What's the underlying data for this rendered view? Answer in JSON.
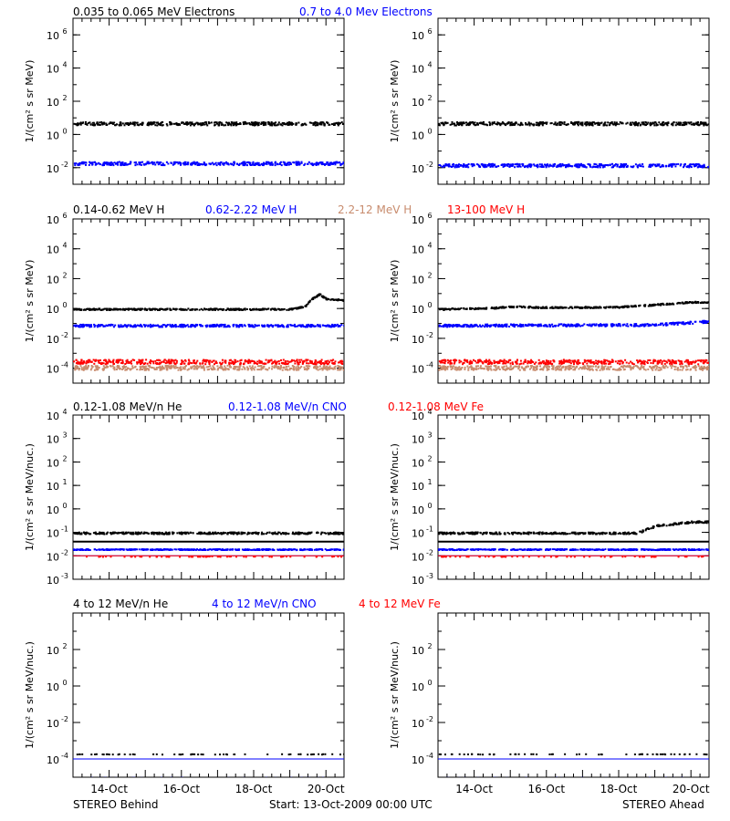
{
  "footer": {
    "left": "STEREO Behind",
    "center": "Start: 13-Oct-2009 00:00 UTC",
    "right": "STEREO Ahead"
  },
  "x_ticks": [
    "14-Oct",
    "16-Oct",
    "18-Oct",
    "20-Oct"
  ],
  "colors": {
    "black": "#000000",
    "blue": "#0000ff",
    "red": "#ff0000",
    "tan": "#c88c6e"
  },
  "chart_data": [
    {
      "type": "scatter",
      "row": 1,
      "titles": [
        {
          "text": "0.035 to 0.065 MeV Electrons",
          "color": "#000000"
        },
        {
          "text": "0.7 to 4.0 Mev Electrons",
          "color": "#0000ff"
        }
      ],
      "ylabel": "1/(cm² s sr MeV)",
      "yscale": "log",
      "ylim_exp": [
        -3,
        7
      ],
      "yticks": [
        {
          "text": "10",
          "exp": "-2"
        },
        {
          "text": "10",
          "exp": "0"
        },
        {
          "text": "10",
          "exp": "2"
        },
        {
          "text": "10",
          "exp": "4"
        },
        {
          "text": "10",
          "exp": "6"
        }
      ],
      "xlim_days": [
        0,
        7.5
      ],
      "panels": [
        {
          "spacecraft": "STEREO Behind",
          "series": [
            {
              "name": "0.035 to 0.065 MeV Electrons",
              "color": "#000000",
              "level": 5,
              "spread": 0.1
            },
            {
              "name": "0.7 to 4.0 Mev Electrons",
              "color": "#0000ff",
              "level": 0.02,
              "spread": 0.1
            }
          ]
        },
        {
          "spacecraft": "STEREO Ahead",
          "series": [
            {
              "name": "0.035 to 0.065 MeV Electrons",
              "color": "#000000",
              "level": 5,
              "spread": 0.1
            },
            {
              "name": "0.7 to 4.0 Mev Electrons",
              "color": "#0000ff",
              "level": 0.015,
              "spread": 0.1
            }
          ]
        }
      ]
    },
    {
      "type": "scatter",
      "row": 2,
      "titles": [
        {
          "text": "0.14-0.62 MeV H",
          "color": "#000000"
        },
        {
          "text": "0.62-2.22 MeV H",
          "color": "#0000ff"
        },
        {
          "text": "2.2-12 MeV H",
          "color": "#c88c6e"
        },
        {
          "text": "13-100 MeV H",
          "color": "#ff0000"
        }
      ],
      "ylabel": "1/(cm² s sr MeV)",
      "yscale": "log",
      "ylim_exp": [
        -5,
        6
      ],
      "yticks": [
        {
          "text": "10",
          "exp": "-4"
        },
        {
          "text": "10",
          "exp": "-2"
        },
        {
          "text": "10",
          "exp": "0"
        },
        {
          "text": "10",
          "exp": "2"
        },
        {
          "text": "10",
          "exp": "4"
        },
        {
          "text": "10",
          "exp": "6"
        }
      ],
      "xlim_days": [
        0,
        7.5
      ],
      "panels": [
        {
          "spacecraft": "STEREO Behind",
          "series": [
            {
              "name": "0.14-0.62 MeV H",
              "color": "#000000",
              "level": 1,
              "spread": 0.05,
              "profile": [
                [
                  0,
                  1
                ],
                [
                  6.0,
                  1
                ],
                [
                  6.4,
                  1.5
                ],
                [
                  6.6,
                  5
                ],
                [
                  6.8,
                  10
                ],
                [
                  7.0,
                  5
                ],
                [
                  7.5,
                  4
                ]
              ]
            },
            {
              "name": "0.62-2.22 MeV H",
              "color": "#0000ff",
              "level": 0.08,
              "spread": 0.08
            },
            {
              "name": "2.2-12 MeV H",
              "color": "#c88c6e",
              "level": 0.00012,
              "spread": 0.15
            },
            {
              "name": "13-100 MeV H",
              "color": "#ff0000",
              "level": 0.0003,
              "spread": 0.15
            }
          ]
        },
        {
          "spacecraft": "STEREO Ahead",
          "series": [
            {
              "name": "0.14-0.62 MeV H",
              "color": "#000000",
              "level": 1,
              "spread": 0.05,
              "profile": [
                [
                  0,
                  1
                ],
                [
                  1.5,
                  1.2
                ],
                [
                  2.0,
                  1.5
                ],
                [
                  3.0,
                  1.3
                ],
                [
                  5.0,
                  1.4
                ],
                [
                  6.0,
                  2
                ],
                [
                  7.0,
                  3
                ],
                [
                  7.5,
                  3
                ]
              ]
            },
            {
              "name": "0.62-2.22 MeV H",
              "color": "#0000ff",
              "level": 0.08,
              "spread": 0.08,
              "profile": [
                [
                  0,
                  0.08
                ],
                [
                  6.0,
                  0.09
                ],
                [
                  7.0,
                  0.13
                ],
                [
                  7.5,
                  0.15
                ]
              ]
            },
            {
              "name": "2.2-12 MeV H",
              "color": "#c88c6e",
              "level": 0.00012,
              "spread": 0.15
            },
            {
              "name": "13-100 MeV H",
              "color": "#ff0000",
              "level": 0.0003,
              "spread": 0.15
            }
          ]
        }
      ]
    },
    {
      "type": "scatter",
      "row": 3,
      "titles": [
        {
          "text": "0.12-1.08 MeV/n He",
          "color": "#000000"
        },
        {
          "text": "0.12-1.08 MeV/n CNO",
          "color": "#0000ff"
        },
        {
          "text": "0.12-1.08 MeV Fe",
          "color": "#ff0000"
        }
      ],
      "ylabel": "1/(cm² s sr MeV/nuc.)",
      "yscale": "log",
      "ylim_exp": [
        -3,
        4
      ],
      "yticks": [
        {
          "text": "10",
          "exp": "-3"
        },
        {
          "text": "10",
          "exp": "-2"
        },
        {
          "text": "10",
          "exp": "-1"
        },
        {
          "text": "10",
          "exp": "0"
        },
        {
          "text": "10",
          "exp": "1"
        },
        {
          "text": "10",
          "exp": "2"
        },
        {
          "text": "10",
          "exp": "3"
        },
        {
          "text": "10",
          "exp": "4"
        }
      ],
      "xlim_days": [
        0,
        7.5
      ],
      "panels": [
        {
          "spacecraft": "STEREO Behind",
          "series": [
            {
              "name": "0.12-1.08 MeV/n He",
              "color": "#000000",
              "level": 0.1,
              "spread": 0.04,
              "baseline": 0.04
            },
            {
              "name": "0.12-1.08 MeV/n CNO",
              "color": "#0000ff",
              "level": 0.02,
              "spread": 0.02,
              "baseline": 0.01
            },
            {
              "name": "0.12-1.08 MeV Fe",
              "color": "#ff0000",
              "level": 0.01,
              "spread": 0.0,
              "baseline": 0.01
            }
          ]
        },
        {
          "spacecraft": "STEREO Ahead",
          "series": [
            {
              "name": "0.12-1.08 MeV/n He",
              "color": "#000000",
              "level": 0.1,
              "spread": 0.04,
              "baseline": 0.04,
              "profile": [
                [
                  0,
                  0.1
                ],
                [
                  5.5,
                  0.1
                ],
                [
                  6.0,
                  0.2
                ],
                [
                  7.0,
                  0.3
                ],
                [
                  7.5,
                  0.3
                ]
              ]
            },
            {
              "name": "0.12-1.08 MeV/n CNO",
              "color": "#0000ff",
              "level": 0.02,
              "spread": 0.02,
              "baseline": 0.01
            },
            {
              "name": "0.12-1.08 MeV Fe",
              "color": "#ff0000",
              "level": 0.01,
              "spread": 0.0,
              "baseline": 0.01
            }
          ]
        }
      ]
    },
    {
      "type": "scatter",
      "row": 4,
      "titles": [
        {
          "text": "4 to 12 MeV/n He",
          "color": "#000000"
        },
        {
          "text": "4 to 12 MeV/n CNO",
          "color": "#0000ff"
        },
        {
          "text": "4 to 12 MeV Fe",
          "color": "#ff0000"
        }
      ],
      "ylabel": "1/(cm² s sr MeV/nuc.)",
      "yscale": "log",
      "ylim_exp": [
        -5,
        4
      ],
      "yticks": [
        {
          "text": "10",
          "exp": "-4"
        },
        {
          "text": "10",
          "exp": "-2"
        },
        {
          "text": "10",
          "exp": "0"
        },
        {
          "text": "10",
          "exp": "2"
        }
      ],
      "xlim_days": [
        0,
        7.5
      ],
      "panels": [
        {
          "spacecraft": "STEREO Behind",
          "series": [
            {
              "name": "4 to 12 MeV/n He",
              "color": "#000000",
              "level": 0.0002,
              "spread": 0.0,
              "baseline": 0.0001
            },
            {
              "name": "4 to 12 MeV/n CNO",
              "color": "#0000ff",
              "level": 1e-05,
              "spread": 0.0,
              "baseline": 0.0001
            }
          ]
        },
        {
          "spacecraft": "STEREO Ahead",
          "series": [
            {
              "name": "4 to 12 MeV/n He",
              "color": "#000000",
              "level": 0.0002,
              "spread": 0.0,
              "baseline": 0.0001
            },
            {
              "name": "4 to 12 MeV/n CNO",
              "color": "#0000ff",
              "level": 1e-05,
              "spread": 0.0,
              "baseline": 0.0001
            }
          ]
        }
      ]
    }
  ]
}
